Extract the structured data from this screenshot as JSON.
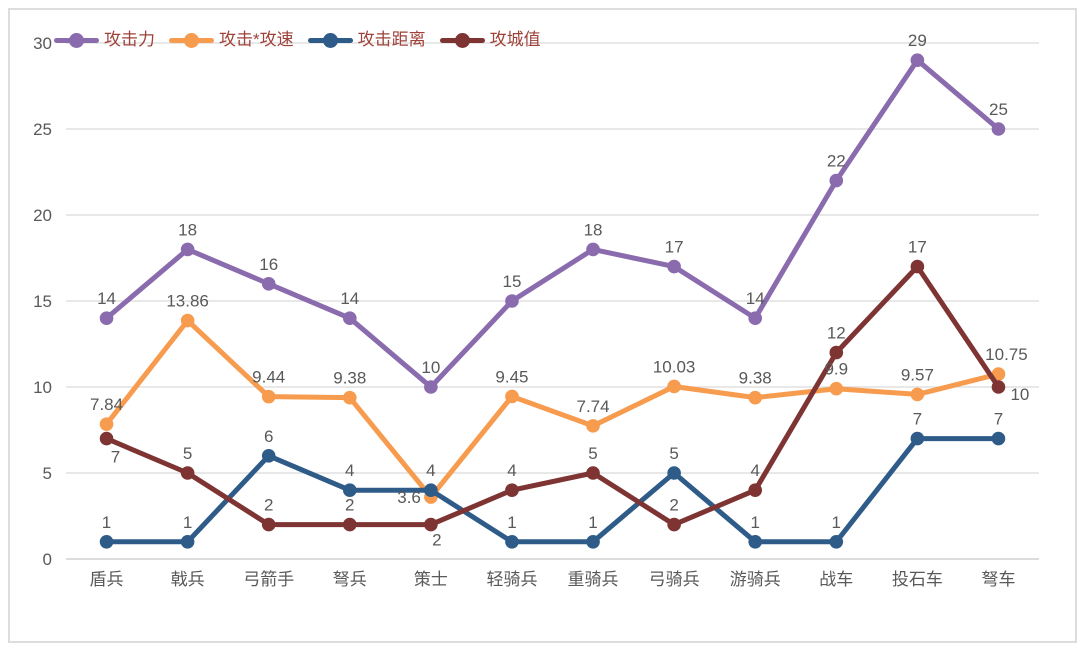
{
  "chart_data": {
    "type": "line",
    "title": "",
    "xlabel": "",
    "ylabel": "",
    "categories": [
      "盾兵",
      "戟兵",
      "弓箭手",
      "弩兵",
      "策士",
      "轻骑兵",
      "重骑兵",
      "弓骑兵",
      "游骑兵",
      "战车",
      "投石车",
      "弩车"
    ],
    "series": [
      {
        "name": "攻击力",
        "color": "#8A6BAE",
        "values": [
          14,
          18,
          16,
          14,
          10,
          15,
          18,
          17,
          14,
          22,
          29,
          25
        ]
      },
      {
        "name": "攻击*攻速",
        "color": "#F79B4E",
        "values": [
          7.84,
          13.86,
          9.44,
          9.38,
          3.6,
          9.45,
          7.74,
          10.03,
          9.38,
          9.9,
          9.57,
          10.75
        ]
      },
      {
        "name": "攻击距离",
        "color": "#2E5B88",
        "values": [
          1,
          1,
          6,
          4,
          4,
          1,
          1,
          5,
          1,
          1,
          7,
          7
        ]
      },
      {
        "name": "攻城值",
        "color": "#7E3433",
        "values": [
          7,
          5,
          2,
          2,
          2,
          4,
          5,
          2,
          4,
          12,
          17,
          10
        ]
      }
    ],
    "ylim": [
      0,
      30
    ],
    "yticks": [
      0,
      5,
      10,
      15,
      20,
      25,
      30
    ],
    "grid": true,
    "data_labels": true,
    "legend_position": "top-left"
  },
  "colors": {
    "background": "#FFFFFF",
    "border": "#DDDDDD",
    "gridline": "#D9D9D9",
    "axis_line": "#C6C6C6",
    "tick_label": "#595959",
    "data_label": "#595959",
    "legend_text": "#9E4139"
  }
}
